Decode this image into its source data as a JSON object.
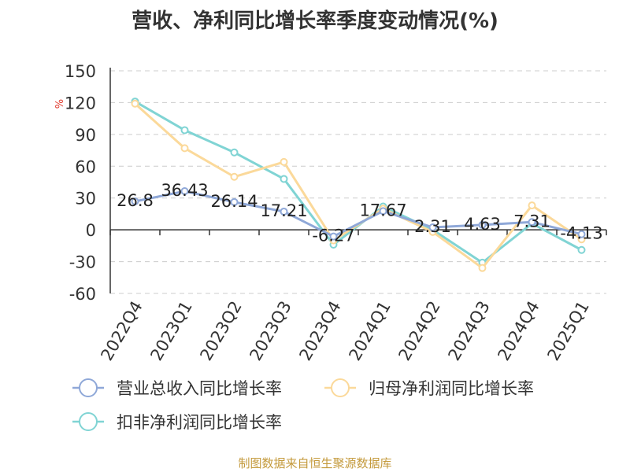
{
  "chart_data": {
    "type": "line",
    "title": "营收、净利同比增长率季度变动情况(%)",
    "ylabel": "%",
    "ylim": [
      -60,
      150
    ],
    "yticks": [
      150,
      120,
      90,
      60,
      30,
      0,
      -30,
      -60
    ],
    "grid": true,
    "legend_position": "bottom",
    "categories": [
      "2022Q4",
      "2023Q1",
      "2023Q2",
      "2023Q3",
      "2023Q4",
      "2024Q1",
      "2024Q2",
      "2024Q3",
      "2024Q4",
      "2025Q1"
    ],
    "series": [
      {
        "name": "营业总收入同比增长率",
        "color": "#8fa8d8",
        "values": [
          26.8,
          36.43,
          26.14,
          17.21,
          -6.27,
          17.67,
          2.31,
          4.63,
          7.31,
          -4.13
        ],
        "labels": [
          "26.8",
          "36.43",
          "26.14",
          "17.21",
          "-6.27",
          "17.67",
          "2.31",
          "4.63",
          "7.31",
          "-4.13"
        ]
      },
      {
        "name": "归母净利润同比增长率",
        "color": "#fbd99a",
        "values": [
          119,
          77,
          50,
          64,
          -10,
          20,
          -2,
          -36,
          23,
          -9
        ]
      },
      {
        "name": "扣非净利润同比增长率",
        "color": "#80d4d4",
        "values": [
          121,
          94,
          73,
          48,
          -14,
          22,
          0,
          -31,
          6,
          -19
        ]
      }
    ]
  },
  "footer": {
    "source": "制图数据来自恒生聚源数据库"
  }
}
